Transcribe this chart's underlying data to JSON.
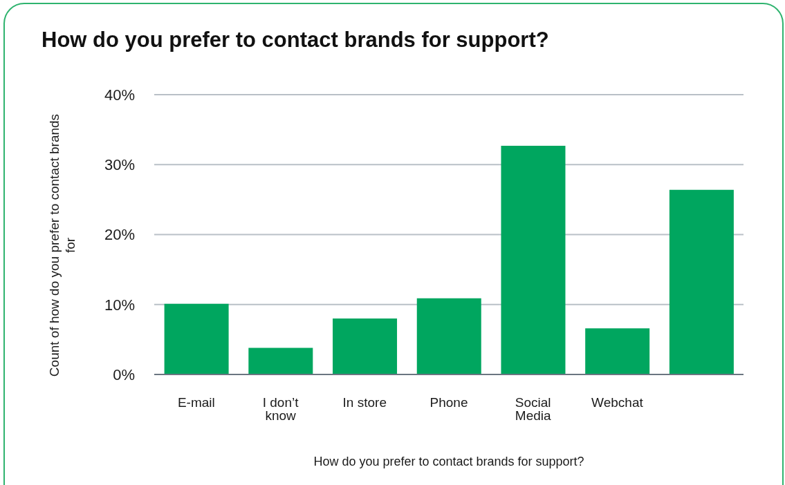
{
  "chart_data": {
    "type": "bar",
    "title": "How do you prefer to contact brands for support?",
    "xlabel": "How do you prefer to contact brands for support?",
    "ylabel": "Count of how do you prefer to contact brands for",
    "categories": [
      "E-mail",
      "I don’t know",
      "In store",
      "Phone",
      "Social Media",
      "Webchat",
      null
    ],
    "values": [
      10.1,
      3.8,
      8.0,
      10.9,
      32.7,
      6.6,
      26.4
    ],
    "color": "#00a65f",
    "ylim": [
      0,
      40
    ],
    "yticks": [
      {
        "value": 0,
        "label": "0%"
      },
      {
        "value": 10,
        "label": "10%"
      },
      {
        "value": 20,
        "label": "20%"
      },
      {
        "value": 30,
        "label": "30%"
      },
      {
        "value": 40,
        "label": "40%"
      }
    ],
    "grid": "y",
    "legend": false
  }
}
